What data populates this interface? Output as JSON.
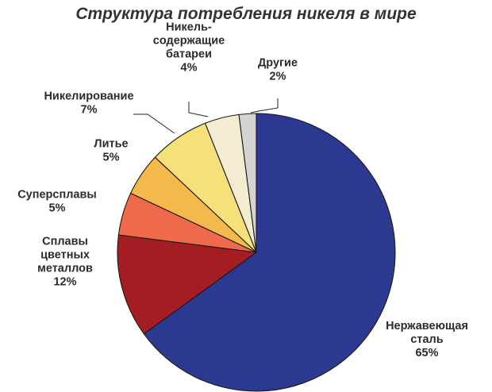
{
  "chart_data": {
    "type": "pie",
    "title": "Структура потребления никеля в мире",
    "start_clockwise_from": "top",
    "slices": [
      {
        "name": "Нержавеющая сталь",
        "lines": [
          "Нержавеющая",
          "сталь"
        ],
        "value": 65,
        "value_label": "65%",
        "color": "#2b3990"
      },
      {
        "name": "Сплавы цветных металлов",
        "lines": [
          "Сплавы",
          "цветных",
          "металлов"
        ],
        "value": 12,
        "value_label": "12%",
        "color": "#a31d23"
      },
      {
        "name": "Суперсплавы",
        "lines": [
          "Суперсплавы"
        ],
        "value": 5,
        "value_label": "5%",
        "color": "#ee6a4a"
      },
      {
        "name": "Литье",
        "lines": [
          "Литье"
        ],
        "value": 5,
        "value_label": "5%",
        "color": "#f5b84a"
      },
      {
        "name": "Никелирование",
        "lines": [
          "Никелирование"
        ],
        "value": 7,
        "value_label": "7%",
        "color": "#f6e07a"
      },
      {
        "name": "Никельсодержащие батареи",
        "lines": [
          "Никель-",
          "содержащие",
          "батареи"
        ],
        "value": 4,
        "value_label": "4%",
        "color": "#f3ecd0"
      },
      {
        "name": "Другие",
        "lines": [
          "Другие"
        ],
        "value": 2,
        "value_label": "2%",
        "color": "#d4d4d4"
      }
    ]
  }
}
